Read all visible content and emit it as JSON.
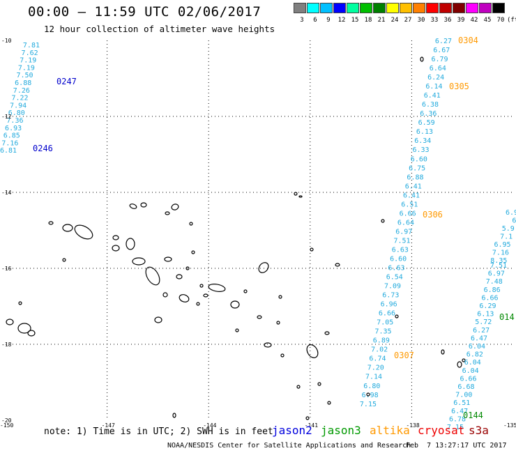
{
  "header": {
    "title": "00:00 — 11:59 UTC 02/06/2017",
    "subtitle": "12 hour collection of altimeter wave heights"
  },
  "colorbar": {
    "colors": [
      "#808080",
      "#00ffff",
      "#00c0ff",
      "#0000ff",
      "#00ffa0",
      "#00c000",
      "#008000",
      "#ffff00",
      "#ffc000",
      "#ff8000",
      "#ff0000",
      "#c00000",
      "#800000",
      "#ff00ff",
      "#c000c0",
      "#000000"
    ],
    "labels": [
      "3",
      "6",
      "9",
      "12",
      "15",
      "18",
      "21",
      "24",
      "27",
      "30",
      "33",
      "36",
      "39",
      "42",
      "45",
      "70",
      "(ft)"
    ]
  },
  "axes": {
    "lat_labels": [
      "-10",
      "-12",
      "-14",
      "-16",
      "-18",
      "-20"
    ],
    "lon_labels": [
      "-150",
      "-147",
      "-144",
      "-141",
      "-138",
      "-135"
    ]
  },
  "passes": [
    {
      "id": "0247",
      "color": "#0000cc"
    },
    {
      "id": "0246",
      "color": "#0000cc"
    },
    {
      "id": "0304",
      "color": "#ff9900"
    },
    {
      "id": "0305",
      "color": "#ff9900"
    },
    {
      "id": "0306",
      "color": "#ff9900"
    },
    {
      "id": "0307",
      "color": "#ff9900"
    },
    {
      "id": "0144",
      "color": "#008800"
    },
    {
      "id": "014",
      "color": "#008800"
    }
  ],
  "track_left": [
    "7.81",
    "7.62",
    "7.19",
    "7.19",
    "7.50",
    "6.88",
    "7.26",
    "7.22",
    "7.94",
    "6.80",
    "7.36",
    "6.93",
    "6.85",
    "7.16",
    "6.81"
  ],
  "track_mid": [
    "6.27",
    "6.67",
    "6.79",
    "6.64",
    "6.24",
    "6.14",
    "6.41",
    "6.38",
    "6.36",
    "6.59",
    "6.13",
    "6.34",
    "6.33",
    "6.60",
    "6.75",
    "6.88",
    "6.41",
    "6.41",
    "6.51",
    "6.66",
    "6.64",
    "6.97",
    "7.51",
    "6.63",
    "6.60",
    "6.63",
    "6.54",
    "7.09",
    "6.73",
    "6.96",
    "6.66",
    "7.05",
    "7.35",
    "6.89",
    "7.02",
    "6.74",
    "7.20",
    "7.14",
    "6.80",
    "6.98",
    "7.15"
  ],
  "track_right": [
    "6.9",
    "6",
    "5.9",
    "7.1",
    "6.95",
    "7.16",
    "8.35",
    "7.51",
    "6.97",
    "7.48",
    "6.86",
    "6.66",
    "6.29",
    "6.13",
    "5.72",
    "6.27",
    "6.47",
    "6.04",
    "6.82",
    "6.04",
    "6.04",
    "6.66",
    "6.68",
    "7.00",
    "6.51",
    "6.47",
    "6.78",
    "7.15"
  ],
  "note": "note: 1) Time is in UTC; 2) SWH is in feet",
  "legend": [
    {
      "label": "jason2",
      "color": "#0000dd"
    },
    {
      "label": "jason3",
      "color": "#009900"
    },
    {
      "label": "altika",
      "color": "#ff9900"
    },
    {
      "label": "cryosat",
      "color": "#ee0000"
    },
    {
      "label": "s3a",
      "color": "#990000"
    }
  ],
  "footer": "NOAA/NESDIS Center for Satellite Applications and Research",
  "footer_time": "Feb  7 13:27:17 UTC 2017"
}
